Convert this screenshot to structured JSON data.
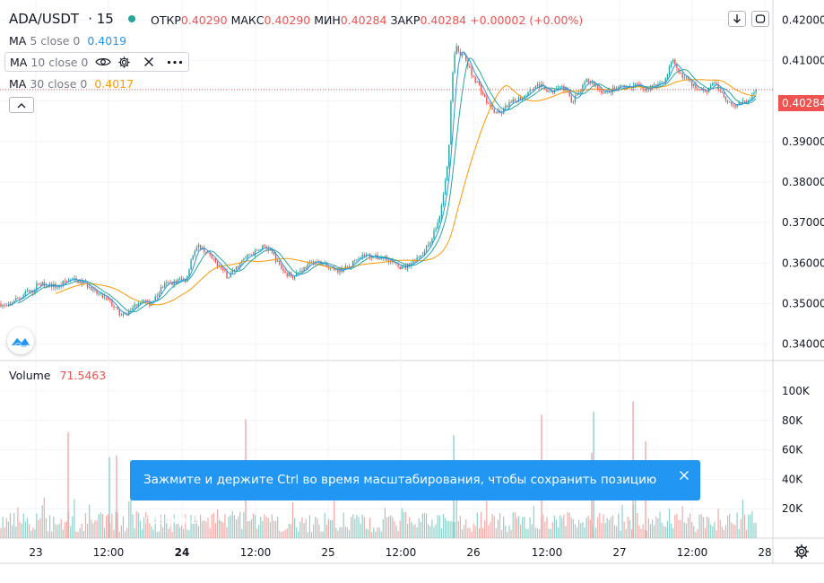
{
  "header": {
    "symbol": "ADA/USDT",
    "interval": "15",
    "open_label": "ОТКР",
    "open_value": "0.40290",
    "high_label": "МАКС",
    "high_value": "0.40290",
    "low_label": "МИН",
    "low_value": "0.40284",
    "close_label": "ЗАКР",
    "close_value": "0.40284",
    "change": "+0.00002 (+0.00%)"
  },
  "indicators": [
    {
      "label": "MA",
      "params": "5 close 0",
      "value": "0.4019",
      "color": "#2196f3"
    },
    {
      "label": "MA",
      "params": "10 close 0",
      "value": "",
      "color": "#26a69a"
    },
    {
      "label": "MA",
      "params": "30 close 0",
      "value": "0.4017",
      "color": "#ff9800"
    }
  ],
  "volume": {
    "label": "Volume",
    "value": "71.5463"
  },
  "last_price_label": "0.40284",
  "toast": {
    "text": "Зажмите и держите Ctrl во время масштабирования, чтобы сохранить позицию графика"
  },
  "colors": {
    "up": "#26a69a",
    "down": "#ef5350",
    "accent": "#2196f3",
    "ma5": "#2196f3",
    "ma10": "#26a69a",
    "ma30": "#ff9800"
  },
  "chart_data": {
    "type": "candlestick",
    "symbol": "ADA/USDT",
    "interval": "15",
    "price_axis": {
      "ticks": [
        "0.42000",
        "0.41000",
        "0.40000",
        "0.39000",
        "0.38000",
        "0.37000",
        "0.36000",
        "0.35000",
        "0.34000"
      ],
      "range": [
        0.3375,
        0.4225
      ]
    },
    "volume_axis": {
      "ticks": [
        "100K",
        "80K",
        "60K",
        "40K",
        "20K"
      ],
      "range": [
        0,
        100000
      ]
    },
    "time_axis": {
      "ticks": [
        "23",
        "12:00",
        "24",
        "12:00",
        "25",
        "12:00",
        "26",
        "12:00",
        "27",
        "12:00",
        "28"
      ],
      "bold": [
        "24"
      ]
    },
    "price_path": [
      [
        0,
        0.35
      ],
      [
        8,
        0.349
      ],
      [
        16,
        0.351
      ],
      [
        24,
        0.3515
      ],
      [
        30,
        0.353
      ],
      [
        36,
        0.3528
      ],
      [
        42,
        0.355
      ],
      [
        50,
        0.3548
      ],
      [
        58,
        0.3545
      ],
      [
        65,
        0.354
      ],
      [
        72,
        0.3555
      ],
      [
        80,
        0.356
      ],
      [
        88,
        0.3555
      ],
      [
        96,
        0.3548
      ],
      [
        104,
        0.353
      ],
      [
        112,
        0.352
      ],
      [
        120,
        0.351
      ],
      [
        128,
        0.349
      ],
      [
        136,
        0.3468
      ],
      [
        142,
        0.3475
      ],
      [
        150,
        0.3495
      ],
      [
        158,
        0.351
      ],
      [
        166,
        0.3498
      ],
      [
        174,
        0.3515
      ],
      [
        180,
        0.354
      ],
      [
        186,
        0.355
      ],
      [
        194,
        0.3552
      ],
      [
        202,
        0.356
      ],
      [
        208,
        0.356
      ],
      [
        214,
        0.3618
      ],
      [
        222,
        0.3642
      ],
      [
        230,
        0.3628
      ],
      [
        238,
        0.3605
      ],
      [
        246,
        0.359
      ],
      [
        254,
        0.3565
      ],
      [
        262,
        0.3585
      ],
      [
        270,
        0.3605
      ],
      [
        278,
        0.362
      ],
      [
        286,
        0.3628
      ],
      [
        294,
        0.3642
      ],
      [
        302,
        0.363
      ],
      [
        310,
        0.36
      ],
      [
        318,
        0.3575
      ],
      [
        326,
        0.3568
      ],
      [
        334,
        0.358
      ],
      [
        342,
        0.3592
      ],
      [
        350,
        0.3605
      ],
      [
        358,
        0.36
      ],
      [
        366,
        0.3588
      ],
      [
        374,
        0.358
      ],
      [
        382,
        0.3585
      ],
      [
        390,
        0.359
      ],
      [
        398,
        0.3615
      ],
      [
        406,
        0.362
      ],
      [
        414,
        0.3618
      ],
      [
        422,
        0.3612
      ],
      [
        430,
        0.3615
      ],
      [
        438,
        0.36
      ],
      [
        446,
        0.359
      ],
      [
        452,
        0.359
      ],
      [
        458,
        0.36
      ],
      [
        466,
        0.3615
      ],
      [
        474,
        0.363
      ],
      [
        482,
        0.3665
      ],
      [
        490,
        0.371
      ],
      [
        496,
        0.379
      ],
      [
        500,
        0.386
      ],
      [
        504,
        0.405
      ],
      [
        508,
        0.414
      ],
      [
        512,
        0.412
      ],
      [
        518,
        0.411
      ],
      [
        526,
        0.4065
      ],
      [
        534,
        0.404
      ],
      [
        542,
        0.4
      ],
      [
        550,
        0.3975
      ],
      [
        558,
        0.3968
      ],
      [
        566,
        0.399
      ],
      [
        574,
        0.4
      ],
      [
        582,
        0.401
      ],
      [
        590,
        0.4025
      ],
      [
        598,
        0.404
      ],
      [
        606,
        0.4035
      ],
      [
        614,
        0.402
      ],
      [
        622,
        0.404
      ],
      [
        630,
        0.403
      ],
      [
        638,
        0.4
      ],
      [
        646,
        0.402
      ],
      [
        654,
        0.405
      ],
      [
        662,
        0.4045
      ],
      [
        670,
        0.4025
      ],
      [
        678,
        0.4022
      ],
      [
        686,
        0.403
      ],
      [
        694,
        0.4035
      ],
      [
        702,
        0.403
      ],
      [
        710,
        0.404
      ],
      [
        718,
        0.403
      ],
      [
        726,
        0.4035
      ],
      [
        734,
        0.404
      ],
      [
        742,
        0.4055
      ],
      [
        750,
        0.41
      ],
      [
        756,
        0.407
      ],
      [
        764,
        0.406
      ],
      [
        772,
        0.404
      ],
      [
        780,
        0.403
      ],
      [
        788,
        0.4025
      ],
      [
        796,
        0.405
      ],
      [
        804,
        0.402
      ],
      [
        812,
        0.4
      ],
      [
        820,
        0.399
      ],
      [
        828,
        0.3995
      ],
      [
        836,
        0.4005
      ],
      [
        844,
        0.4028
      ]
    ],
    "volume_spikes": [
      [
        76,
        72000
      ],
      [
        122,
        55000
      ],
      [
        130,
        56000
      ],
      [
        274,
        81000
      ],
      [
        506,
        70000
      ],
      [
        604,
        84000
      ],
      [
        660,
        58000
      ],
      [
        662,
        86000
      ],
      [
        706,
        93000
      ],
      [
        720,
        66000
      ]
    ]
  }
}
